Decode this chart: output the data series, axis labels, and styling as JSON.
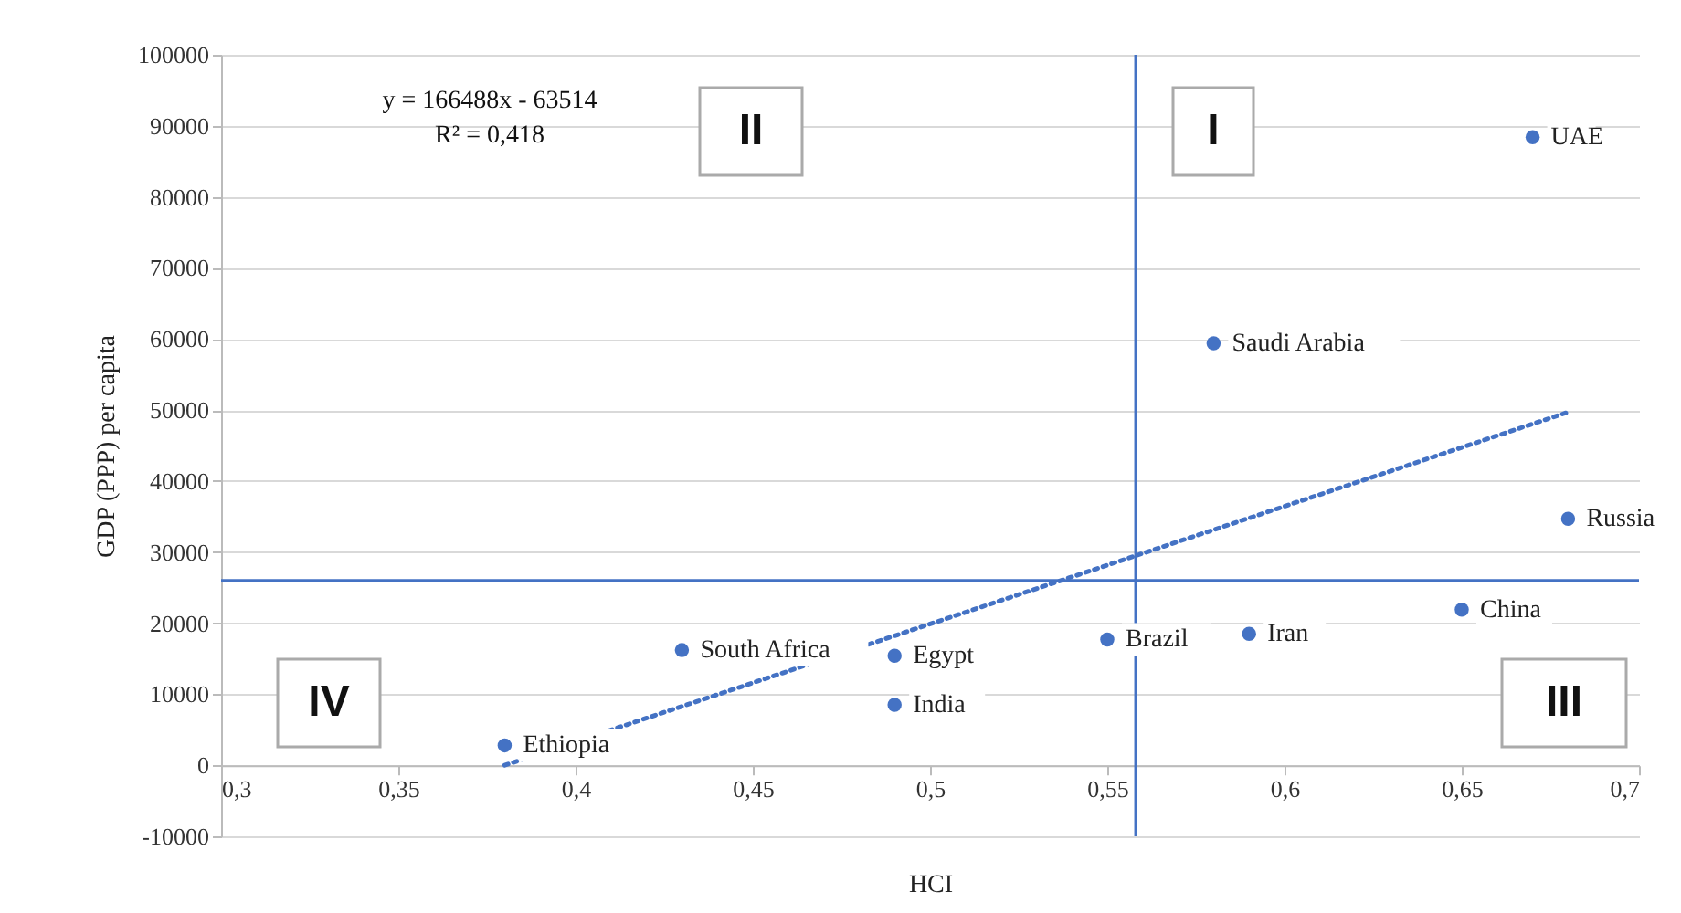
{
  "chart_data": {
    "type": "scatter",
    "xlabel": "HCI",
    "ylabel": "GDP (PPP) per capita",
    "xlim": [
      0.3,
      0.7
    ],
    "ylim": [
      -10000,
      100000
    ],
    "xticks": [
      {
        "value": 0.3,
        "label": "0,3"
      },
      {
        "value": 0.35,
        "label": "0,35"
      },
      {
        "value": 0.4,
        "label": "0,4"
      },
      {
        "value": 0.45,
        "label": "0,45"
      },
      {
        "value": 0.5,
        "label": "0,5"
      },
      {
        "value": 0.55,
        "label": "0,55"
      },
      {
        "value": 0.6,
        "label": "0,6"
      },
      {
        "value": 0.65,
        "label": "0,65"
      },
      {
        "value": 0.7,
        "label": "0,7"
      }
    ],
    "yticks": [
      -10000,
      0,
      10000,
      20000,
      30000,
      40000,
      50000,
      60000,
      70000,
      80000,
      90000,
      100000
    ],
    "grid": "y",
    "marker": "circle",
    "series": [
      {
        "name": "UAE",
        "color": "#4472c4",
        "x": [
          0.67
        ],
        "values": [
          88400
        ]
      },
      {
        "name": "Saudi Arabia",
        "color": "#4472c4",
        "x": [
          0.58
        ],
        "values": [
          59400
        ]
      },
      {
        "name": "Russia",
        "color": "#4472c4",
        "x": [
          0.68
        ],
        "values": [
          34700
        ]
      },
      {
        "name": "China",
        "color": "#4472c4",
        "x": [
          0.65
        ],
        "values": [
          21900
        ]
      },
      {
        "name": "Iran",
        "color": "#4472c4",
        "x": [
          0.59
        ],
        "values": [
          18500
        ]
      },
      {
        "name": "Brazil",
        "color": "#4472c4",
        "x": [
          0.55
        ],
        "values": [
          17700
        ]
      },
      {
        "name": "South Africa",
        "color": "#4472c4",
        "x": [
          0.43
        ],
        "values": [
          16200
        ]
      },
      {
        "name": "Egypt",
        "color": "#4472c4",
        "x": [
          0.49
        ],
        "values": [
          15400
        ]
      },
      {
        "name": "India",
        "color": "#4472c4",
        "x": [
          0.49
        ],
        "values": [
          8500
        ]
      },
      {
        "name": "Ethiopia",
        "color": "#4472c4",
        "x": [
          0.38
        ],
        "values": [
          2800
        ]
      },
      {
        "type": "line",
        "color": "#4472c4",
        "line_style": "dotted",
        "marker": "none",
        "x": [
          0.38,
          0.68
        ],
        "values": [
          0,
          49700
        ]
      }
    ],
    "ref_lines": [
      {
        "axis": "x",
        "value": 0.558,
        "color": "#4472c4"
      },
      {
        "axis": "y",
        "value": 26000,
        "color": "#4472c4"
      }
    ],
    "annotations": [
      "y = 166488x - 63514",
      "R² = 0,418",
      "I",
      "II",
      "III",
      "IV"
    ]
  }
}
